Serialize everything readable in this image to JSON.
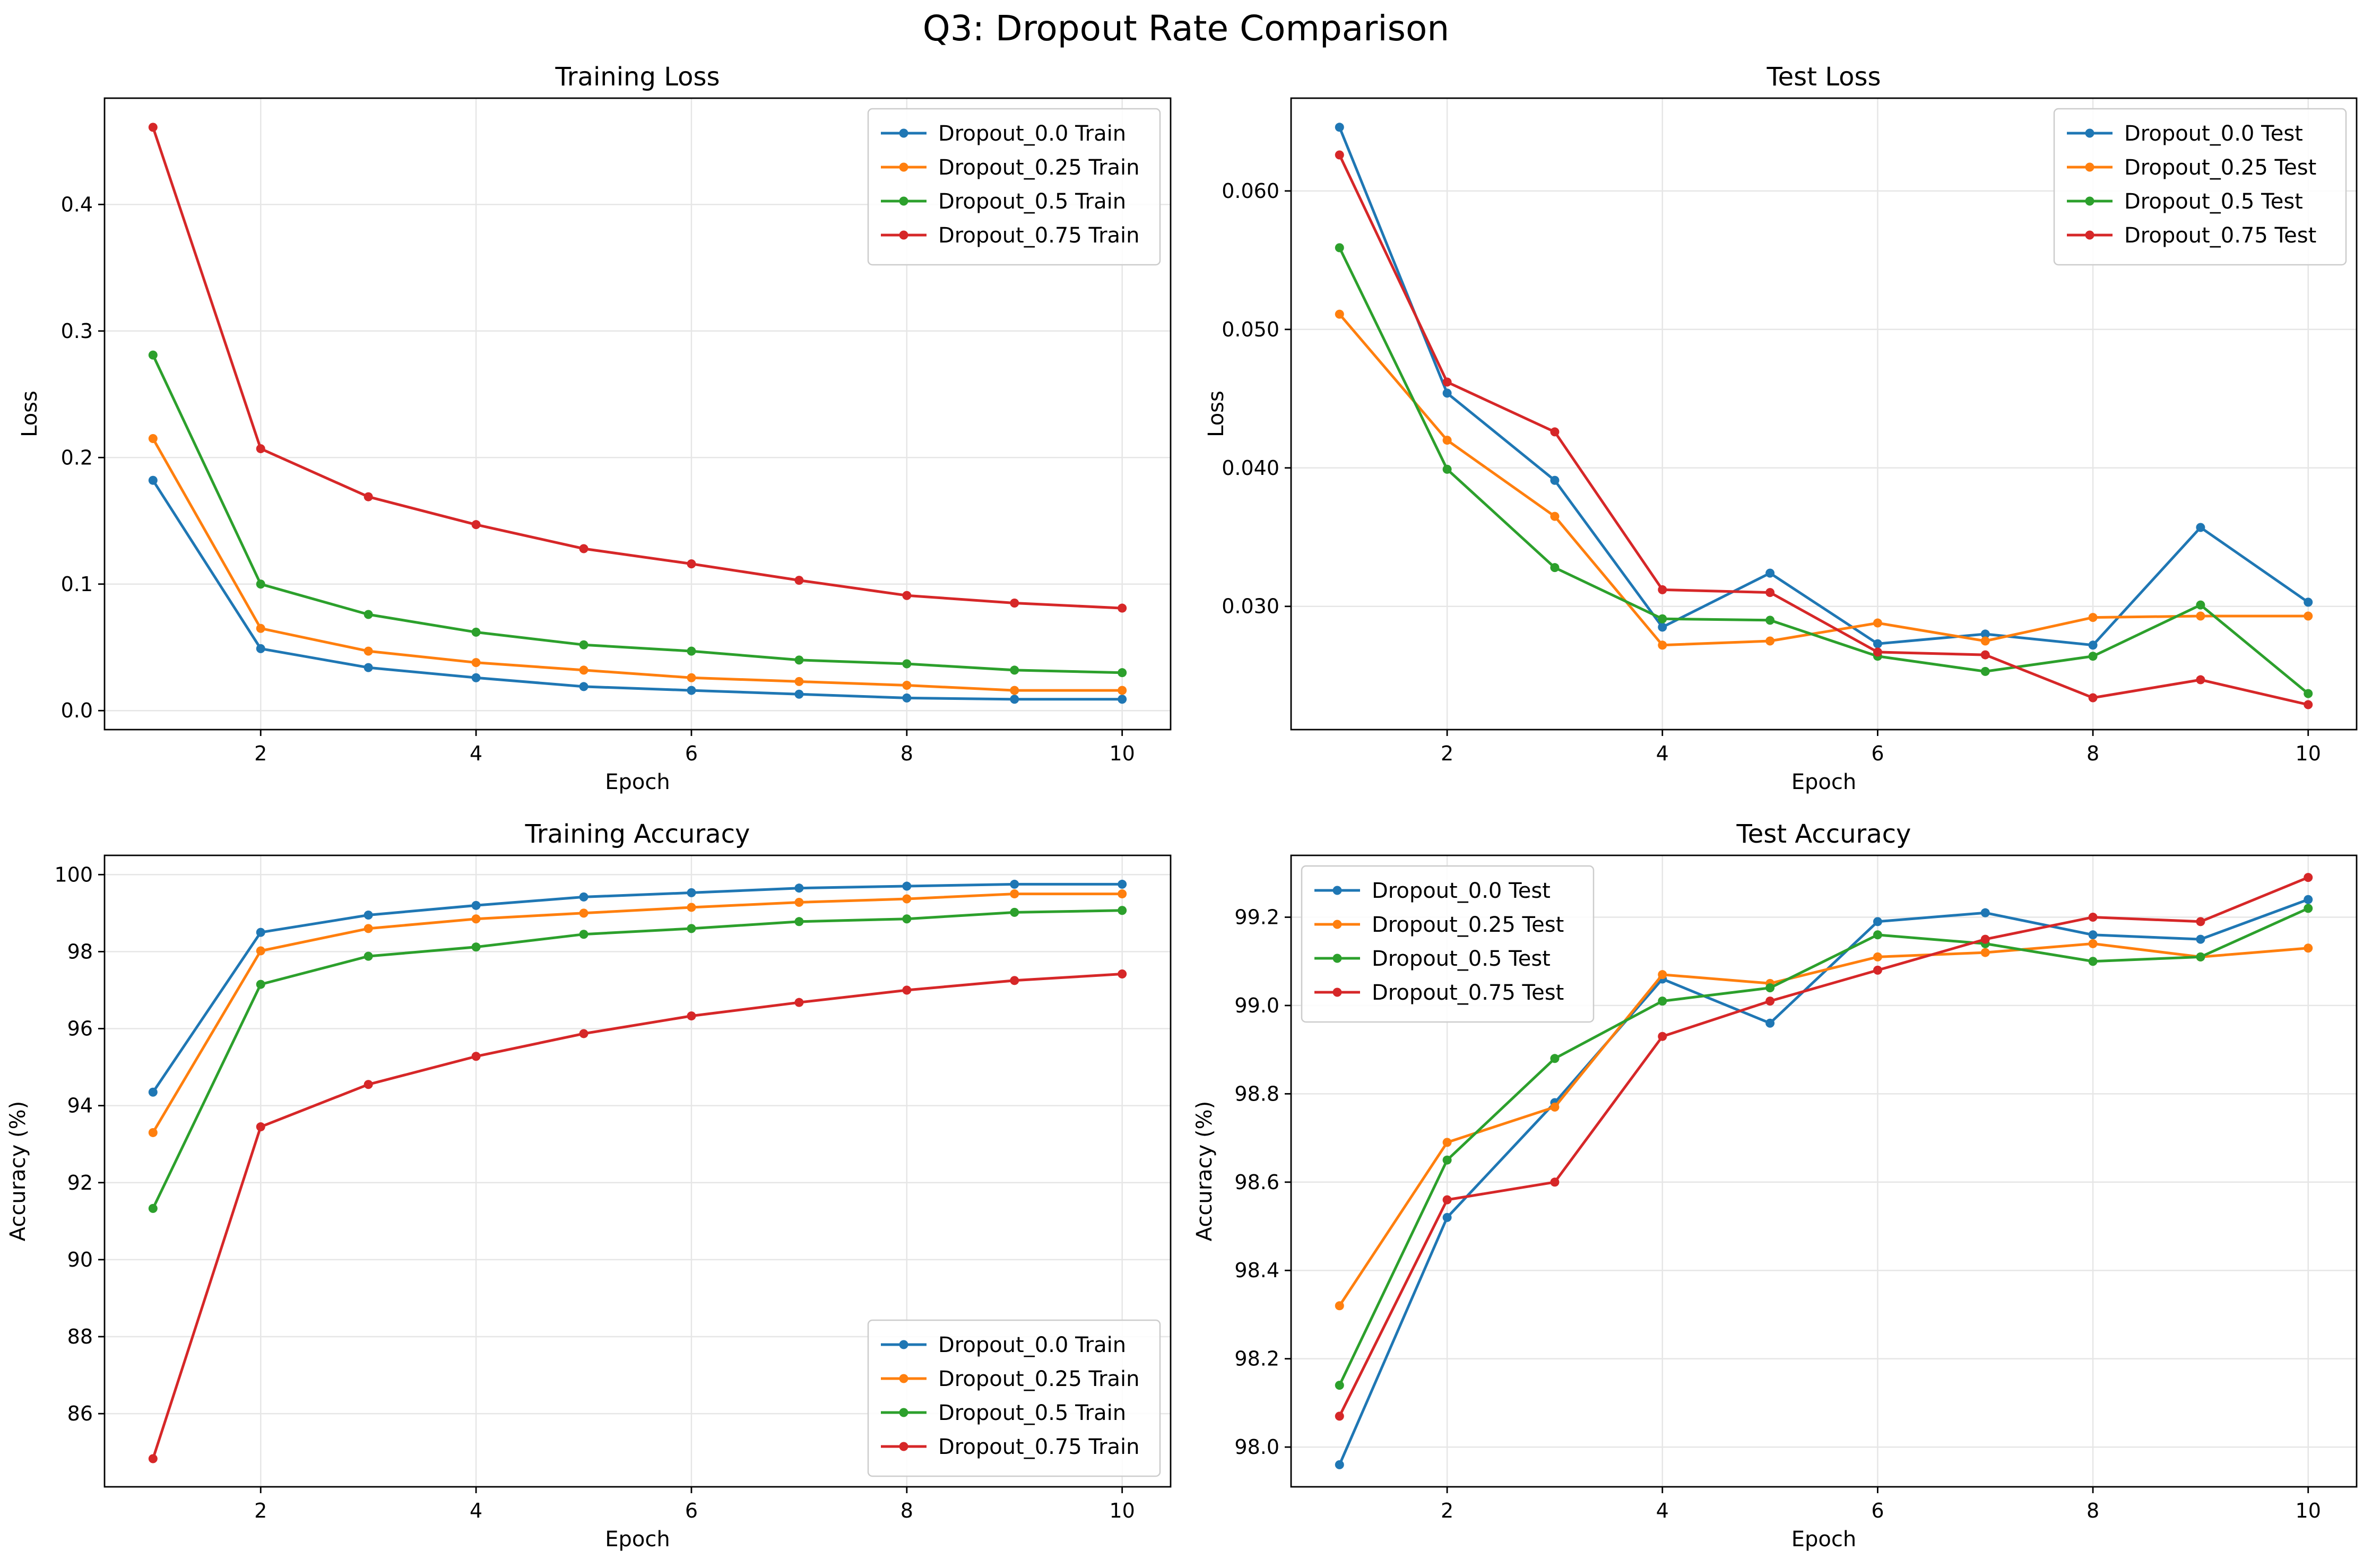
{
  "figure": {
    "suptitle": "Q3: Dropout Rate Comparison"
  },
  "chart_data": [
    {
      "type": "line",
      "title": "Training Loss",
      "xlabel": "Epoch",
      "ylabel": "Loss",
      "xlim": [
        0.55,
        10.45
      ],
      "ylim": [
        -0.015,
        0.484
      ],
      "xticks": [
        2,
        4,
        6,
        8,
        10
      ],
      "xtick_labels": [
        "2",
        "4",
        "6",
        "8",
        "10"
      ],
      "yticks": [
        0.0,
        0.1,
        0.2,
        0.3,
        0.4
      ],
      "ytick_labels": [
        "0.0",
        "0.1",
        "0.2",
        "0.3",
        "0.4"
      ],
      "grid": true,
      "legend_position": "upper right",
      "x": [
        1,
        2,
        3,
        4,
        5,
        6,
        7,
        8,
        9,
        10
      ],
      "series": [
        {
          "name": "Dropout_0.0 Train",
          "color": "#1f77b4",
          "values": [
            0.182,
            0.049,
            0.034,
            0.026,
            0.019,
            0.016,
            0.013,
            0.01,
            0.009,
            0.009
          ]
        },
        {
          "name": "Dropout_0.25 Train",
          "color": "#ff7f0e",
          "values": [
            0.215,
            0.065,
            0.047,
            0.038,
            0.032,
            0.026,
            0.023,
            0.02,
            0.016,
            0.016
          ]
        },
        {
          "name": "Dropout_0.5 Train",
          "color": "#2ca02c",
          "values": [
            0.281,
            0.1,
            0.076,
            0.062,
            0.052,
            0.047,
            0.04,
            0.037,
            0.032,
            0.03
          ]
        },
        {
          "name": "Dropout_0.75 Train",
          "color": "#d62728",
          "values": [
            0.461,
            0.207,
            0.169,
            0.147,
            0.128,
            0.116,
            0.103,
            0.091,
            0.085,
            0.081
          ]
        }
      ]
    },
    {
      "type": "line",
      "title": "Test Loss",
      "xlabel": "Epoch",
      "ylabel": "Loss",
      "xlim": [
        0.55,
        10.45
      ],
      "ylim": [
        0.0211,
        0.0667
      ],
      "xticks": [
        2,
        4,
        6,
        8,
        10
      ],
      "xtick_labels": [
        "2",
        "4",
        "6",
        "8",
        "10"
      ],
      "yticks": [
        0.03,
        0.04,
        0.05,
        0.06
      ],
      "ytick_labels": [
        "0.030",
        "0.040",
        "0.050",
        "0.060"
      ],
      "grid": true,
      "legend_position": "upper right",
      "x": [
        1,
        2,
        3,
        4,
        5,
        6,
        7,
        8,
        9,
        10
      ],
      "series": [
        {
          "name": "Dropout_0.0 Test",
          "color": "#1f77b4",
          "values": [
            0.0646,
            0.0454,
            0.0391,
            0.0285,
            0.0324,
            0.0273,
            0.028,
            0.0272,
            0.0357,
            0.0303
          ]
        },
        {
          "name": "Dropout_0.25 Test",
          "color": "#ff7f0e",
          "values": [
            0.0511,
            0.042,
            0.0365,
            0.0272,
            0.0275,
            0.0288,
            0.0275,
            0.0292,
            0.0293,
            0.0293
          ]
        },
        {
          "name": "Dropout_0.5 Test",
          "color": "#2ca02c",
          "values": [
            0.0559,
            0.0399,
            0.0328,
            0.0291,
            0.029,
            0.0264,
            0.0253,
            0.0264,
            0.0301,
            0.0237
          ]
        },
        {
          "name": "Dropout_0.75 Test",
          "color": "#d62728",
          "values": [
            0.0626,
            0.0462,
            0.0426,
            0.0312,
            0.031,
            0.0267,
            0.0265,
            0.0234,
            0.0247,
            0.0229
          ]
        }
      ]
    },
    {
      "type": "line",
      "title": "Training Accuracy",
      "xlabel": "Epoch",
      "ylabel": "Accuracy (%)",
      "xlim": [
        0.55,
        10.45
      ],
      "ylim": [
        84.1,
        100.5
      ],
      "xticks": [
        2,
        4,
        6,
        8,
        10
      ],
      "xtick_labels": [
        "2",
        "4",
        "6",
        "8",
        "10"
      ],
      "yticks": [
        86,
        88,
        90,
        92,
        94,
        96,
        98,
        100
      ],
      "ytick_labels": [
        "86",
        "88",
        "90",
        "92",
        "94",
        "96",
        "98",
        "100"
      ],
      "grid": true,
      "legend_position": "lower right",
      "x": [
        1,
        2,
        3,
        4,
        5,
        6,
        7,
        8,
        9,
        10
      ],
      "series": [
        {
          "name": "Dropout_0.0 Train",
          "color": "#1f77b4",
          "values": [
            94.35,
            98.5,
            98.95,
            99.2,
            99.42,
            99.53,
            99.65,
            99.7,
            99.75,
            99.75
          ]
        },
        {
          "name": "Dropout_0.25 Train",
          "color": "#ff7f0e",
          "values": [
            93.3,
            98.02,
            98.6,
            98.85,
            99.0,
            99.15,
            99.28,
            99.37,
            99.5,
            99.5
          ]
        },
        {
          "name": "Dropout_0.5 Train",
          "color": "#2ca02c",
          "values": [
            91.33,
            97.15,
            97.88,
            98.12,
            98.45,
            98.6,
            98.78,
            98.85,
            99.02,
            99.07
          ]
        },
        {
          "name": "Dropout_0.75 Train",
          "color": "#d62728",
          "values": [
            84.83,
            93.45,
            94.55,
            95.28,
            95.87,
            96.33,
            96.68,
            97.0,
            97.25,
            97.42
          ]
        }
      ]
    },
    {
      "type": "line",
      "title": "Test Accuracy",
      "xlabel": "Epoch",
      "ylabel": "Accuracy (%)",
      "xlim": [
        0.55,
        10.45
      ],
      "ylim": [
        97.91,
        99.34
      ],
      "xticks": [
        2,
        4,
        6,
        8,
        10
      ],
      "xtick_labels": [
        "2",
        "4",
        "6",
        "8",
        "10"
      ],
      "yticks": [
        98.0,
        98.2,
        98.4,
        98.6,
        98.8,
        99.0,
        99.2
      ],
      "ytick_labels": [
        "98.0",
        "98.2",
        "98.4",
        "98.6",
        "98.8",
        "99.0",
        "99.2"
      ],
      "grid": true,
      "legend_position": "upper left",
      "x": [
        1,
        2,
        3,
        4,
        5,
        6,
        7,
        8,
        9,
        10
      ],
      "series": [
        {
          "name": "Dropout_0.0 Test",
          "color": "#1f77b4",
          "values": [
            97.96,
            98.52,
            98.78,
            99.06,
            98.96,
            99.19,
            99.21,
            99.16,
            99.15,
            99.24
          ]
        },
        {
          "name": "Dropout_0.25 Test",
          "color": "#ff7f0e",
          "values": [
            98.32,
            98.69,
            98.77,
            99.07,
            99.05,
            99.11,
            99.12,
            99.14,
            99.11,
            99.13
          ]
        },
        {
          "name": "Dropout_0.5 Test",
          "color": "#2ca02c",
          "values": [
            98.14,
            98.65,
            98.88,
            99.01,
            99.04,
            99.16,
            99.14,
            99.1,
            99.11,
            99.22
          ]
        },
        {
          "name": "Dropout_0.75 Test",
          "color": "#d62728",
          "values": [
            98.07,
            98.56,
            98.6,
            98.93,
            99.01,
            99.08,
            99.15,
            99.2,
            99.19,
            99.29
          ]
        }
      ]
    }
  ]
}
